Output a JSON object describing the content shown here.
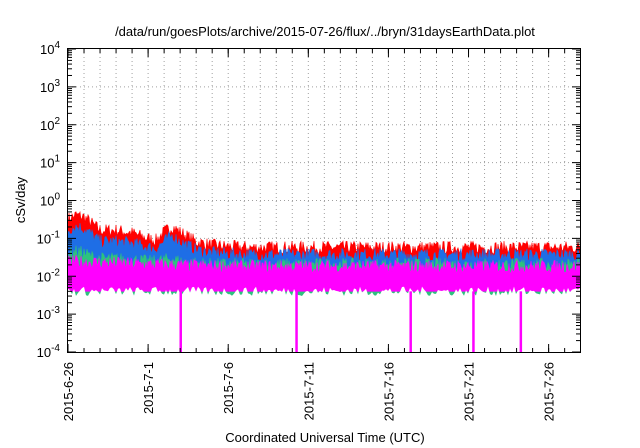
{
  "chart_data": {
    "type": "area",
    "title": "/data/run/goesPlots/archive/2015-07-26/flux/../bryn/31daysEarthData.plot",
    "xlabel": "Coordinated Universal Time (UTC)",
    "ylabel": "cSv/day",
    "scale": {
      "y": "log"
    },
    "ylim": [
      0.0001,
      10000
    ],
    "xlim": [
      "2015-06-26",
      "2015-07-27T23:00"
    ],
    "yticks": [
      {
        "base": "10",
        "exp": "-4",
        "value": 0.0001
      },
      {
        "base": "10",
        "exp": "-3",
        "value": 0.001
      },
      {
        "base": "10",
        "exp": "-2",
        "value": 0.01
      },
      {
        "base": "10",
        "exp": "-1",
        "value": 0.1
      },
      {
        "base": "10",
        "exp": "0",
        "value": 1
      },
      {
        "base": "10",
        "exp": "1",
        "value": 10
      },
      {
        "base": "10",
        "exp": "2",
        "value": 100
      },
      {
        "base": "10",
        "exp": "3",
        "value": 1000
      },
      {
        "base": "10",
        "exp": "4",
        "value": 10000
      }
    ],
    "xticks": [
      {
        "label": "2015-6-26",
        "date": "2015-06-26"
      },
      {
        "label": "2015-7-1",
        "date": "2015-07-01"
      },
      {
        "label": "2015-7-6",
        "date": "2015-07-06"
      },
      {
        "label": "2015-7-11",
        "date": "2015-07-11"
      },
      {
        "label": "2015-7-16",
        "date": "2015-07-16"
      },
      {
        "label": "2015-7-21",
        "date": "2015-07-21"
      },
      {
        "label": "2015-7-26",
        "date": "2015-07-26"
      }
    ],
    "grid": true,
    "series": [
      {
        "color": "#ff0000",
        "x": [
          "2015-06-26",
          "2015-06-26T12:00",
          "2015-06-27",
          "2015-06-27T12:00",
          "2015-06-28",
          "2015-06-29",
          "2015-06-30",
          "2015-07-01",
          "2015-07-01T12:00",
          "2015-07-02",
          "2015-07-02T12:00",
          "2015-07-03",
          "2015-07-04",
          "2015-07-05",
          "2015-07-07",
          "2015-07-10",
          "2015-07-13",
          "2015-07-16",
          "2015-07-19",
          "2015-07-22",
          "2015-07-25",
          "2015-07-27T23:00"
        ],
        "values": [
          0.4,
          0.5,
          0.45,
          0.3,
          0.2,
          0.2,
          0.17,
          0.12,
          0.11,
          0.18,
          0.25,
          0.18,
          0.1,
          0.08,
          0.07,
          0.07,
          0.07,
          0.07,
          0.07,
          0.07,
          0.07,
          0.07
        ]
      },
      {
        "color": "#1e6ee6",
        "x": [
          "2015-06-26",
          "2015-06-26T12:00",
          "2015-06-27",
          "2015-06-27T12:00",
          "2015-06-28",
          "2015-06-29",
          "2015-06-30",
          "2015-07-01",
          "2015-07-01T12:00",
          "2015-07-02",
          "2015-07-02T12:00",
          "2015-07-03",
          "2015-07-04",
          "2015-07-05",
          "2015-07-07",
          "2015-07-10",
          "2015-07-13",
          "2015-07-16",
          "2015-07-19",
          "2015-07-22",
          "2015-07-25",
          "2015-07-27T23:00"
        ],
        "values": [
          0.2,
          0.25,
          0.22,
          0.15,
          0.1,
          0.1,
          0.09,
          0.07,
          0.065,
          0.1,
          0.14,
          0.1,
          0.06,
          0.05,
          0.045,
          0.045,
          0.045,
          0.045,
          0.045,
          0.045,
          0.045,
          0.045
        ]
      },
      {
        "color": "#2ec27e",
        "x": [
          "2015-06-26",
          "2015-06-26T12:00",
          "2015-06-27",
          "2015-06-27T12:00",
          "2015-06-28",
          "2015-06-29",
          "2015-06-30",
          "2015-07-01",
          "2015-07-01T12:00",
          "2015-07-02",
          "2015-07-02T12:00",
          "2015-07-03",
          "2015-07-04",
          "2015-07-05",
          "2015-07-07",
          "2015-07-10",
          "2015-07-13",
          "2015-07-16",
          "2015-07-19",
          "2015-07-22",
          "2015-07-25",
          "2015-07-27T23:00"
        ],
        "values": [
          0.05,
          0.055,
          0.05,
          0.04,
          0.035,
          0.035,
          0.033,
          0.03,
          0.03,
          0.033,
          0.035,
          0.03,
          0.027,
          0.025,
          0.025,
          0.025,
          0.025,
          0.025,
          0.025,
          0.025,
          0.025,
          0.025
        ]
      },
      {
        "color": "#ff00ff",
        "x": [
          "2015-06-26",
          "2015-06-28",
          "2015-07-01",
          "2015-07-04",
          "2015-07-07",
          "2015-07-10",
          "2015-07-13",
          "2015-07-16",
          "2015-07-19",
          "2015-07-22",
          "2015-07-25",
          "2015-07-27T23:00"
        ],
        "values": [
          0.03,
          0.028,
          0.025,
          0.023,
          0.022,
          0.022,
          0.022,
          0.022,
          0.022,
          0.022,
          0.022,
          0.022
        ],
        "floor": 0.004,
        "dips": [
          "2015-07-03T00:30",
          "2015-07-10T06:00",
          "2015-07-17T09:00",
          "2015-07-21T07:00",
          "2015-07-24T06:00"
        ],
        "dip_value": 0.0001
      }
    ]
  }
}
